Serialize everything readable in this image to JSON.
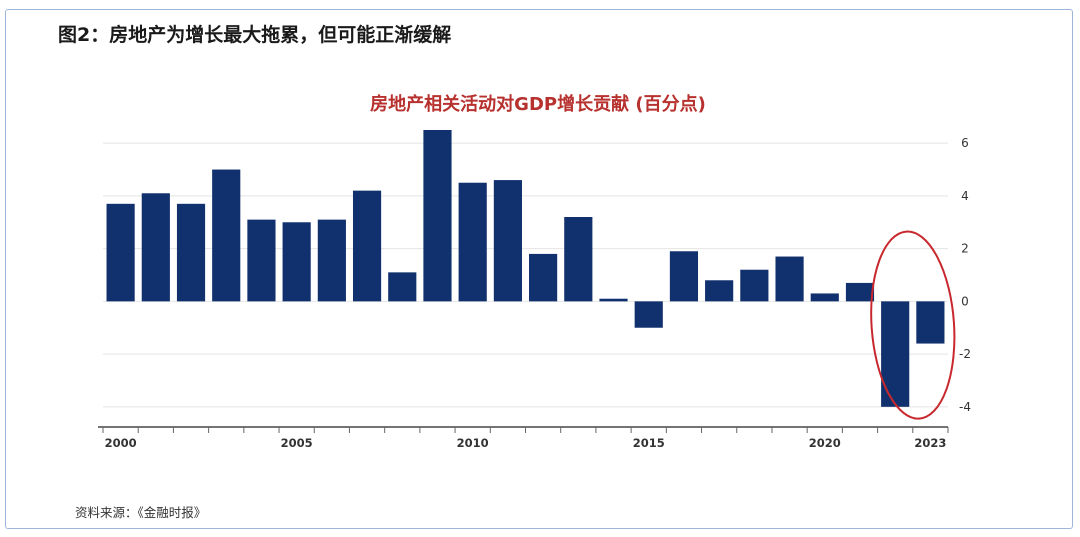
{
  "figure": {
    "title": "图2：房地产为增长最大拖累，但可能正渐缓解",
    "source": "资料来源：《金融时报》"
  },
  "chart_data": {
    "type": "bar",
    "title": "房地产相关活动对GDP增长贡献 (百分点)",
    "xlabel": "",
    "ylabel": "",
    "categories": [
      "2000",
      "2001",
      "2002",
      "2003",
      "2004",
      "2005",
      "2006",
      "2007",
      "2008",
      "2009",
      "2010",
      "2011",
      "2012",
      "2013",
      "2014",
      "2015",
      "2016",
      "2017",
      "2018",
      "2019",
      "2020",
      "2021",
      "2022",
      "2023"
    ],
    "values": [
      3.7,
      4.1,
      3.7,
      5.0,
      3.1,
      3.0,
      3.1,
      4.2,
      1.1,
      6.5,
      4.5,
      4.6,
      1.8,
      3.2,
      0.1,
      -1.0,
      1.9,
      0.8,
      1.2,
      1.7,
      0.3,
      0.7,
      -4.0,
      -1.6
    ],
    "x_tick_labels": [
      "2000",
      "2005",
      "2010",
      "2015",
      "2020",
      "2023"
    ],
    "y_tick_labels": [
      "6",
      "4",
      "2",
      "0",
      "-2",
      "-4"
    ],
    "y_ticks": [
      6,
      4,
      2,
      0,
      -2,
      -4
    ],
    "ylim": [
      -4.5,
      6.5
    ],
    "grid": true,
    "y_axis_position": "right",
    "bar_color": "#10306e",
    "highlight_color": "#c8282d",
    "highlighted_categories": [
      "2022",
      "2023"
    ]
  }
}
